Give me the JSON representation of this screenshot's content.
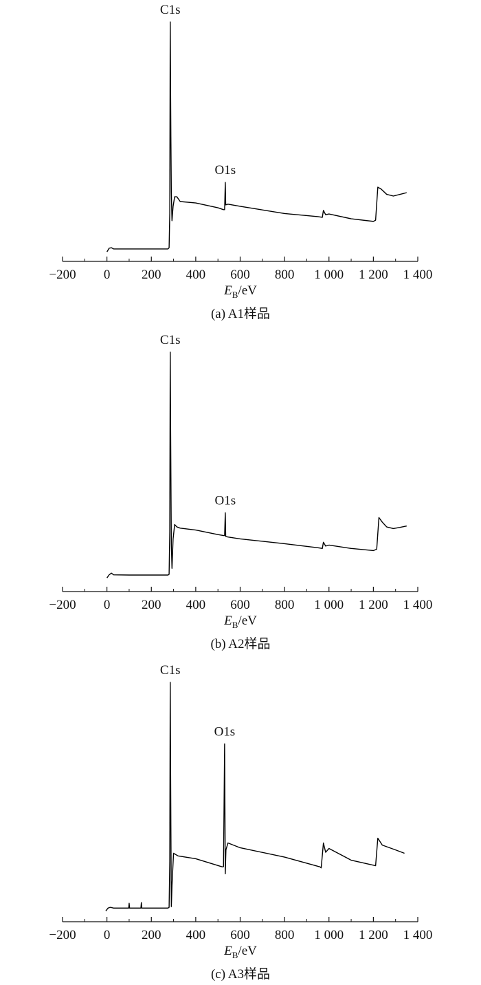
{
  "chart_data": [
    {
      "type": "line",
      "caption": "(a) A1样品",
      "xlabel": {
        "symbol": "E",
        "subscript": "B",
        "unit": "/eV"
      },
      "x": [
        0,
        10,
        20,
        30,
        100,
        200,
        275,
        280,
        283,
        285,
        288,
        290,
        293,
        298,
        305,
        315,
        330,
        400,
        500,
        525,
        530,
        533,
        535,
        545,
        600,
        800,
        950,
        970,
        975,
        985,
        1000,
        1100,
        1200,
        1210,
        1220,
        1235,
        1260,
        1290,
        1320,
        1350
      ],
      "values": [
        4,
        5.5,
        5.7,
        5.2,
        5.2,
        5.2,
        5.2,
        5.7,
        20,
        100,
        52,
        29,
        17,
        23,
        27,
        27,
        25,
        24.4,
        22.4,
        21.6,
        21.6,
        33,
        23.6,
        23.9,
        23,
        20,
        18.7,
        18.4,
        21.3,
        19.5,
        19.8,
        17.8,
        16.7,
        17.2,
        31,
        30.2,
        28,
        27.3,
        28,
        28.7
      ],
      "color": "#000000",
      "annotations": [
        {
          "text": "C1s",
          "x": 285
        },
        {
          "text": "O1s",
          "x": 533
        }
      ],
      "xlim": [
        -200,
        1400
      ],
      "ylim": [
        0,
        100
      ],
      "xticks": [
        {
          "value": -200,
          "label": "−200"
        },
        0,
        200,
        400,
        600,
        800,
        {
          "value": 1000,
          "label": "1 000"
        },
        {
          "value": 1200,
          "label": "1 200"
        },
        {
          "value": 1400,
          "label": "1 400"
        }
      ],
      "xticks_minor": [
        -100,
        100,
        300,
        500,
        700,
        900,
        1100,
        1300
      ]
    },
    {
      "type": "line",
      "caption": "(b) A2样品",
      "xlabel": {
        "symbol": "E",
        "subscript": "B",
        "unit": "/eV"
      },
      "x": [
        0,
        10,
        20,
        30,
        100,
        200,
        275,
        280,
        283,
        285,
        288,
        290,
        293,
        298,
        305,
        315,
        330,
        400,
        500,
        525,
        530,
        533,
        535,
        545,
        600,
        800,
        950,
        970,
        975,
        985,
        1000,
        1100,
        1200,
        1215,
        1225,
        1240,
        1260,
        1290,
        1320,
        1350
      ],
      "values": [
        5.7,
        7,
        7.7,
        7,
        6.9,
        6.9,
        6.9,
        7.2,
        25,
        100,
        50,
        20,
        9.7,
        22,
        28,
        27,
        26.5,
        25.7,
        23.8,
        23.4,
        23.4,
        32.9,
        23,
        22.8,
        22,
        20,
        18.3,
        18,
        20.6,
        19,
        19.4,
        18,
        17.1,
        17.7,
        30.9,
        29,
        27,
        26.3,
        26.8,
        27.4
      ],
      "color": "#000000",
      "annotations": [
        {
          "text": "C1s",
          "x": 285
        },
        {
          "text": "O1s",
          "x": 533
        }
      ],
      "xlim": [
        -200,
        1400
      ],
      "ylim": [
        0,
        100
      ],
      "xticks": [
        {
          "value": -200,
          "label": "−200"
        },
        0,
        200,
        400,
        600,
        800,
        {
          "value": 1000,
          "label": "1 000"
        },
        {
          "value": 1200,
          "label": "1 200"
        },
        {
          "value": 1400,
          "label": "1 400"
        }
      ],
      "xticks_minor": [
        -100,
        100,
        300,
        500,
        700,
        900,
        1100,
        1300
      ]
    },
    {
      "type": "line",
      "caption": "(c) A3样品",
      "xlabel": {
        "symbol": "E",
        "subscript": "B",
        "unit": "/eV"
      },
      "x": [
        -5,
        5,
        15,
        30,
        98,
        100,
        102,
        153,
        155,
        157,
        200,
        275,
        280,
        283,
        285,
        288,
        290,
        293,
        300,
        320,
        400,
        520,
        525,
        530,
        533,
        536,
        545,
        600,
        800,
        960,
        965,
        975,
        985,
        1000,
        1100,
        1210,
        1220,
        1240,
        1300,
        1340
      ],
      "values": [
        4.5,
        5.7,
        6,
        5.7,
        5.7,
        7.7,
        5.7,
        5.7,
        8,
        5.7,
        5.7,
        5.7,
        6,
        25,
        100,
        40,
        6.3,
        15,
        28.6,
        27.5,
        26.3,
        22.9,
        23,
        74.3,
        20,
        30,
        32.9,
        30.9,
        27,
        22.9,
        22.5,
        32.9,
        29,
        30.6,
        25.7,
        23.4,
        34.9,
        32,
        30,
        28.6
      ],
      "color": "#000000",
      "annotations": [
        {
          "text": "C1s",
          "x": 285
        },
        {
          "text": "O1s",
          "x": 530
        }
      ],
      "xlim": [
        -200,
        1400
      ],
      "ylim": [
        0,
        100
      ],
      "xticks": [
        {
          "value": -200,
          "label": "−200"
        },
        0,
        200,
        400,
        600,
        800,
        {
          "value": 1000,
          "label": "1 000"
        },
        {
          "value": 1200,
          "label": "1 200"
        },
        {
          "value": 1400,
          "label": "1 400"
        }
      ],
      "xticks_minor": [
        -100,
        100,
        300,
        500,
        700,
        900,
        1100,
        1300
      ]
    }
  ]
}
